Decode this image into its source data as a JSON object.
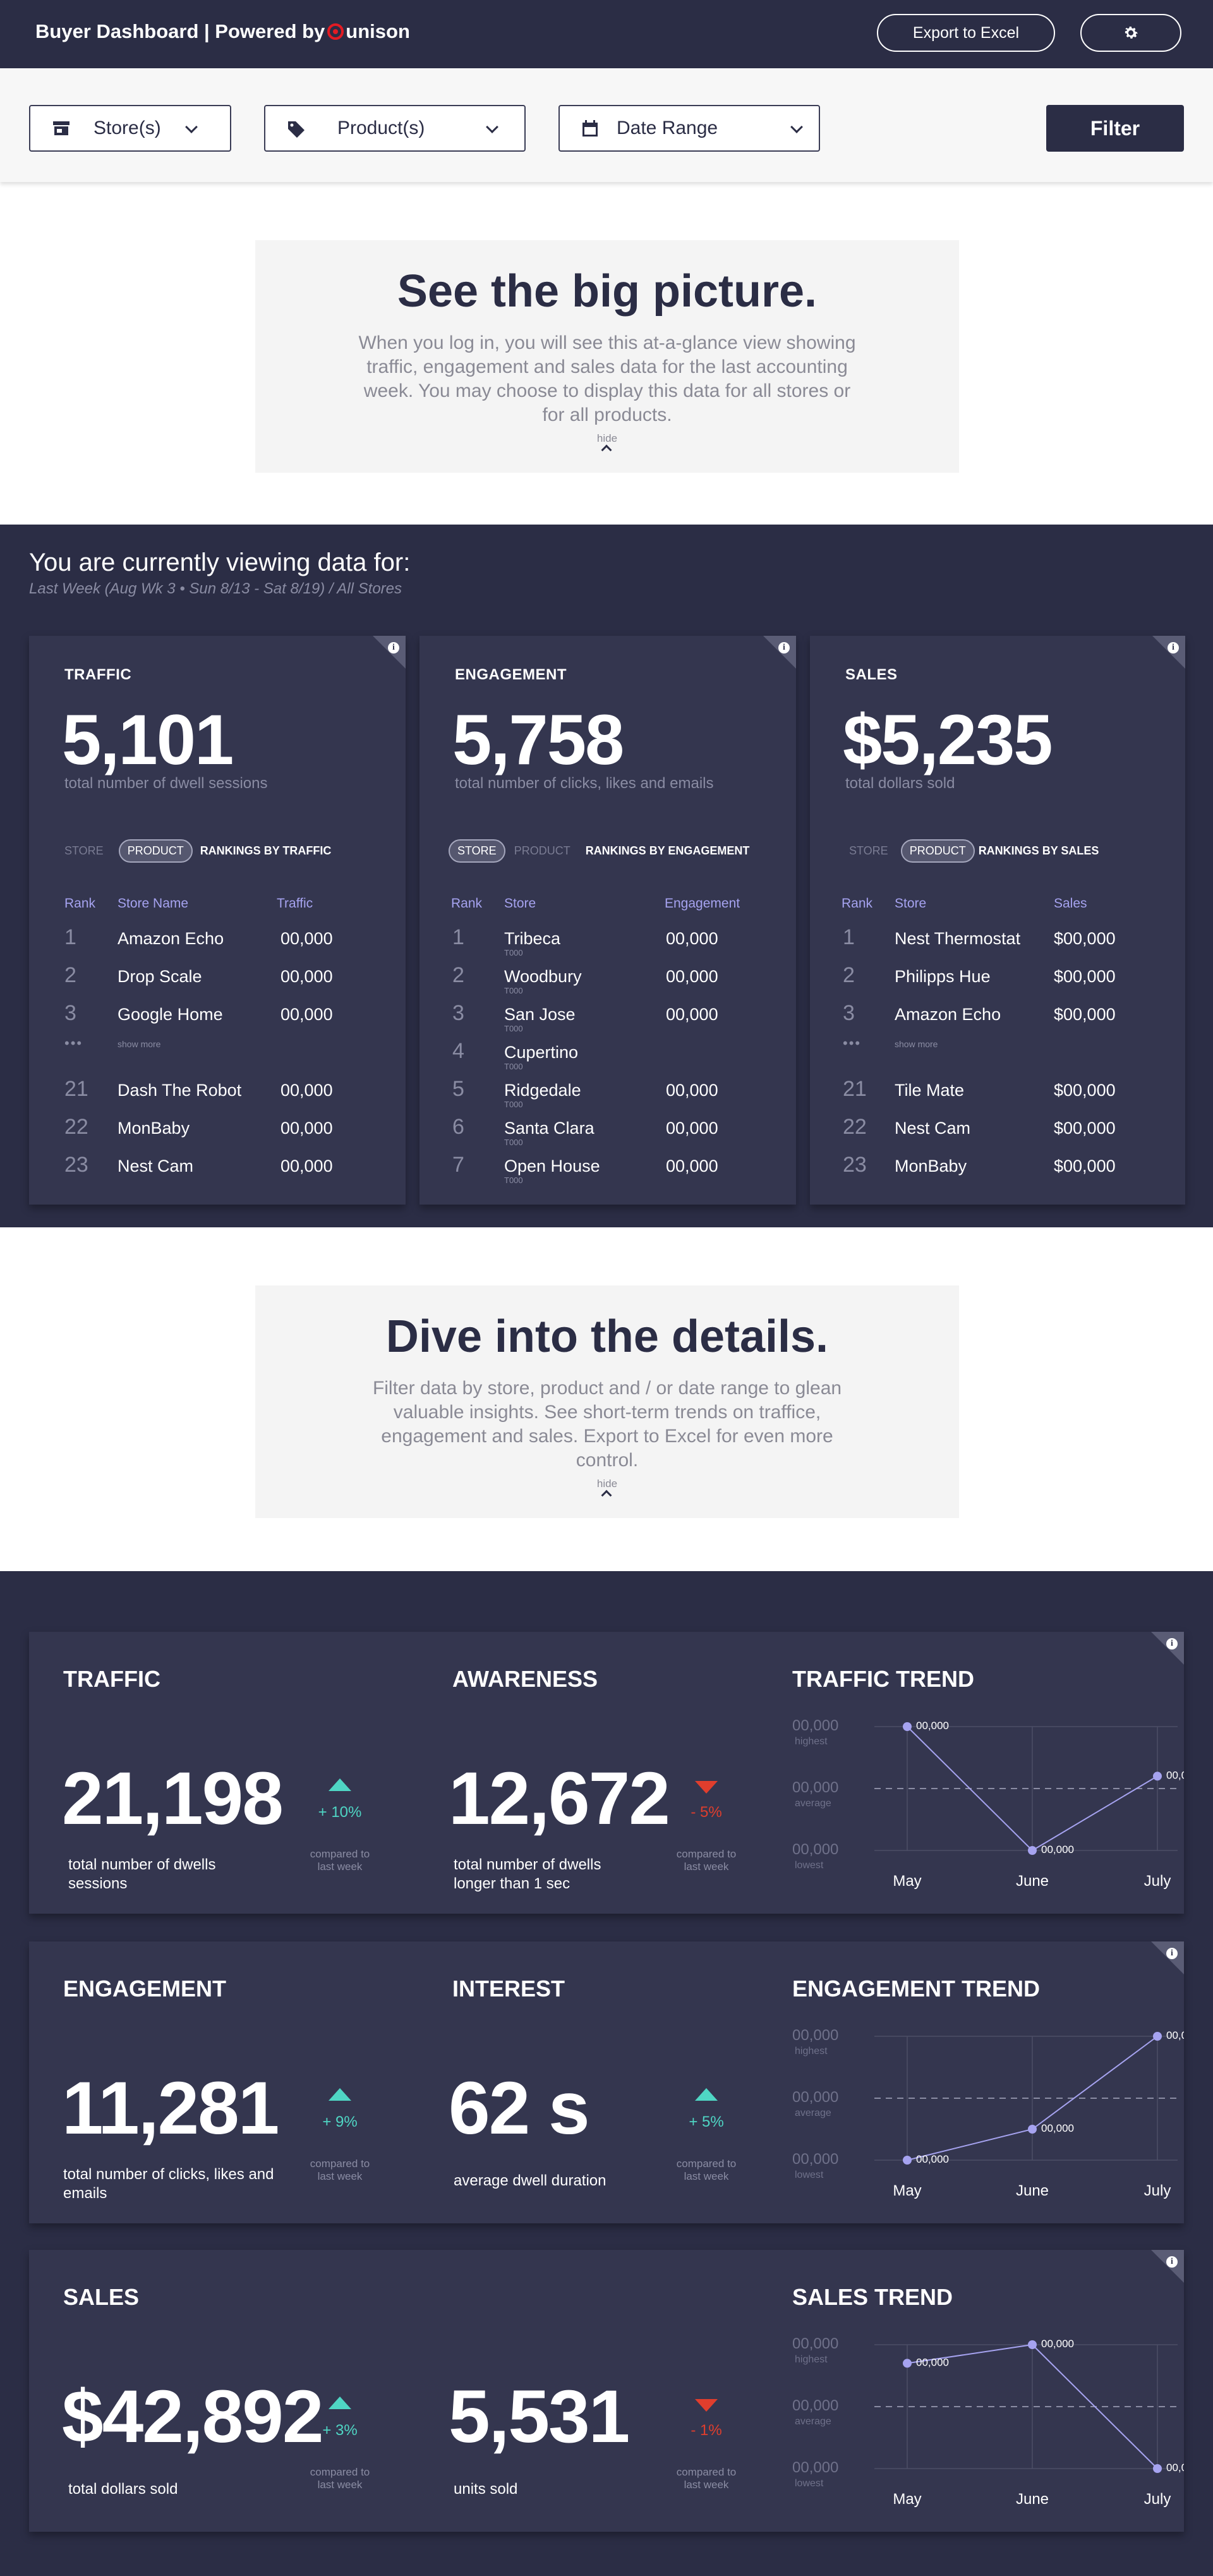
{
  "header": {
    "brand_text": "Buyer Dashboard | Powered by",
    "brand_logo": "unison",
    "export_label": "Export to Excel",
    "settings_icon": "gear-icon"
  },
  "filters": {
    "store_label": "Store(s)",
    "product_label": "Product(s)",
    "date_label": "Date Range",
    "filter_button": "Filter"
  },
  "intro": {
    "title": "See the big picture.",
    "body": "When you log in, you will see this at-a-glance view showing traffic, engagement and sales data for the last accounting week. You may choose to display this data for all stores or for all products.",
    "hide": "hide"
  },
  "viewing": {
    "title": "You are currently viewing data for:",
    "subtitle": "Last Week (Aug Wk 3 • Sun 8/13 - Sat 8/19) / All Stores"
  },
  "summary": {
    "traffic": {
      "title": "TRAFFIC",
      "value": "5,101",
      "desc": "total number of dwell sessions",
      "toggle_store": "STORE",
      "toggle_product": "PRODUCT",
      "rankings": "RANKINGS BY TRAFFIC",
      "col_rank": "Rank",
      "col_name": "Store Name",
      "col_value": "Traffic",
      "show_more": "show more",
      "rows": [
        {
          "rank": "1",
          "name": "Amazon Echo",
          "value": "00,000"
        },
        {
          "rank": "2",
          "name": "Drop Scale",
          "value": "00,000"
        },
        {
          "rank": "3",
          "name": "Google Home",
          "value": "00,000"
        },
        {
          "rank": "21",
          "name": "Dash The Robot",
          "value": "00,000"
        },
        {
          "rank": "22",
          "name": "MonBaby",
          "value": "00,000"
        },
        {
          "rank": "23",
          "name": "Nest Cam",
          "value": "00,000"
        }
      ]
    },
    "engagement": {
      "title": "ENGAGEMENT",
      "value": "5,758",
      "desc": "total number of clicks, likes and emails",
      "toggle_store": "STORE",
      "toggle_product": "PRODUCT",
      "rankings": "RANKINGS BY ENGAGEMENT",
      "col_rank": "Rank",
      "col_name": "Store",
      "col_value": "Engagement",
      "rows": [
        {
          "rank": "1",
          "name": "Tribeca",
          "code": "T000",
          "value": "00,000"
        },
        {
          "rank": "2",
          "name": "Woodbury",
          "code": "T000",
          "value": "00,000"
        },
        {
          "rank": "3",
          "name": "San Jose",
          "code": "T000",
          "value": "00,000"
        },
        {
          "rank": "4",
          "name": "Cupertino",
          "code": "T000",
          "value": ""
        },
        {
          "rank": "5",
          "name": "Ridgedale",
          "code": "T000",
          "value": "00,000"
        },
        {
          "rank": "6",
          "name": "Santa Clara",
          "code": "T000",
          "value": "00,000"
        },
        {
          "rank": "7",
          "name": "Open House",
          "code": "T000",
          "value": "00,000"
        }
      ]
    },
    "sales": {
      "title": "SALES",
      "value": "$5,235",
      "desc": "total dollars sold",
      "toggle_store": "STORE",
      "toggle_product": "PRODUCT",
      "rankings": "RANKINGS BY SALES",
      "col_rank": "Rank",
      "col_name": "Store",
      "col_value": "Sales",
      "show_more": "show more",
      "rows": [
        {
          "rank": "1",
          "name": "Nest Thermostat",
          "value": "$00,000"
        },
        {
          "rank": "2",
          "name": "Philipps Hue",
          "value": "$00,000"
        },
        {
          "rank": "3",
          "name": "Amazon Echo",
          "value": "$00,000"
        },
        {
          "rank": "21",
          "name": "Tile Mate",
          "value": "$00,000"
        },
        {
          "rank": "22",
          "name": "Nest Cam",
          "value": "$00,000"
        },
        {
          "rank": "23",
          "name": "MonBaby",
          "value": "$00,000"
        }
      ]
    }
  },
  "details_intro": {
    "title": "Dive into the details.",
    "body": "Filter data by store, product and / or date range to glean valuable insights. See short-term trends on traffice, engagement and sales. Export to Excel for even more control.",
    "hide": "hide"
  },
  "details": {
    "compared": "compared to last week",
    "row1": {
      "m1": {
        "title": "TRAFFIC",
        "value": "21,198",
        "desc": "total number of dwells sessions",
        "change": "+ 10%",
        "dir": "up"
      },
      "m2": {
        "title": "AWARENESS",
        "value": "12,672",
        "desc": "total number of dwells longer than 1 sec",
        "change": "- 5%",
        "dir": "down"
      },
      "trend_title": "TRAFFIC TREND"
    },
    "row2": {
      "m1": {
        "title": "ENGAGEMENT",
        "value": "11,281",
        "desc": "total number of clicks, likes and emails",
        "change": "+ 9%",
        "dir": "up"
      },
      "m2": {
        "title": "INTEREST",
        "value": "62 s",
        "desc": "average dwell duration",
        "change": "+ 5%",
        "dir": "up"
      },
      "trend_title": "ENGAGEMENT TREND"
    },
    "row3": {
      "m1": {
        "title": "SALES",
        "value": "$42,892",
        "desc": "total dollars sold",
        "change": "+ 3%",
        "dir": "up"
      },
      "m2": {
        "title": "",
        "value": "5,531",
        "desc": "units sold",
        "change": "- 1%",
        "dir": "down"
      },
      "trend_title": "SALES TREND"
    }
  },
  "trend_axis": {
    "y_value": "00,000",
    "y_labels": [
      "highest",
      "average",
      "lowest"
    ],
    "x_labels": [
      "May",
      "June",
      "July"
    ],
    "point_label": "00,000"
  },
  "chart_data": [
    {
      "type": "line",
      "title": "TRAFFIC TREND",
      "categories": [
        "May",
        "June",
        "July"
      ],
      "levels": [
        "highest",
        "lowest",
        "average+"
      ],
      "values": [
        1.0,
        0.0,
        0.6
      ]
    },
    {
      "type": "line",
      "title": "ENGAGEMENT TREND",
      "categories": [
        "May",
        "June",
        "July"
      ],
      "values": [
        0.0,
        0.25,
        1.0
      ]
    },
    {
      "type": "line",
      "title": "SALES TREND",
      "categories": [
        "May",
        "June",
        "July"
      ],
      "values": [
        0.85,
        1.0,
        0.0
      ]
    }
  ],
  "colors": {
    "navy": "#2b2d45",
    "card": "#34364f",
    "accent_purple": "#a6a3f0",
    "up_green": "#4fd6c4",
    "down_red": "#e03e2d",
    "brand_red": "#e31b23"
  }
}
